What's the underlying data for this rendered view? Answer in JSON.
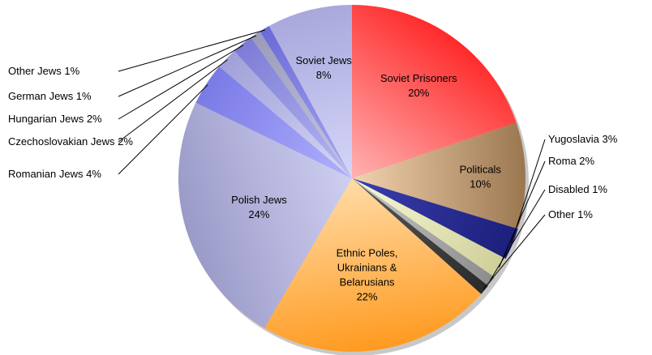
{
  "chart_data": {
    "type": "pie",
    "title": "",
    "start_angle_deg": 90,
    "direction": "clockwise",
    "slices": [
      {
        "name": "Soviet Prisoners",
        "value": 20,
        "inside_label": [
          "Soviet Prisoners",
          "20%"
        ],
        "outside_label": "",
        "label_side": "",
        "color": "#ff2a2a",
        "color_light": "#ffb3b3"
      },
      {
        "name": "Politicals",
        "value": 10,
        "inside_label": [
          "Politicals",
          "10%"
        ],
        "outside_label": "",
        "label_side": "",
        "color": "#9b7750",
        "color_light": "#f3d3b0"
      },
      {
        "name": "Yugoslavia",
        "value": 3,
        "inside_label": [],
        "outside_label": "Yugoslavia 3%",
        "label_side": "right",
        "color": "#1c1f7a",
        "color_light": "#3a3fb0"
      },
      {
        "name": "Roma",
        "value": 2,
        "inside_label": [],
        "outside_label": "Roma 2%",
        "label_side": "right",
        "color": "#cfcf9a",
        "color_light": "#fafad6"
      },
      {
        "name": "Disabled",
        "value": 1,
        "inside_label": [],
        "outside_label": "Disabled 1%",
        "label_side": "right",
        "color": "#8c8c8c",
        "color_light": "#c8c8c8"
      },
      {
        "name": "Other",
        "value": 1,
        "inside_label": [],
        "outside_label": "Other 1%",
        "label_side": "right",
        "color": "#2a2a2a",
        "color_light": "#5a5a5a"
      },
      {
        "name": "Ethnic Poles, Ukrainians & Belarusians",
        "value": 22,
        "inside_label": [
          "Ethnic Poles,",
          "Ukrainians &",
          "Belarusians",
          "22%"
        ],
        "outside_label": "",
        "label_side": "",
        "color": "#ff9a1f",
        "color_light": "#ffdca8"
      },
      {
        "name": "Polish Jews",
        "value": 24,
        "inside_label": [
          "Polish Jews",
          "24%"
        ],
        "outside_label": "",
        "label_side": "",
        "color": "#9a9ac8",
        "color_light": "#cfcff2"
      },
      {
        "name": "Romanian Jews",
        "value": 4,
        "inside_label": [],
        "outside_label": "Romanian Jews 4%",
        "label_side": "left",
        "color": "#7a7ae6",
        "color_light": "#b0b0ff"
      },
      {
        "name": "Czechoslovakian Jews",
        "value": 2,
        "inside_label": [],
        "outside_label": "Czechoslovakian Jews 2%",
        "label_side": "left",
        "color": "#a0a0d8",
        "color_light": "#d8d8f8"
      },
      {
        "name": "Hungarian Jews",
        "value": 2,
        "inside_label": [],
        "outside_label": "Hungarian Jews 2%",
        "label_side": "left",
        "color": "#7c7cd6",
        "color_light": "#b8b8f4"
      },
      {
        "name": "German Jews",
        "value": 1,
        "inside_label": [],
        "outside_label": "German Jews 1%",
        "label_side": "left",
        "color": "#9a9aba",
        "color_light": "#c8c8e4"
      },
      {
        "name": "Other Jews",
        "value": 1,
        "inside_label": [],
        "outside_label": "Other Jews 1%",
        "label_side": "left",
        "color": "#6a6ad8",
        "color_light": "#a8a8f4"
      },
      {
        "name": "Soviet Jews",
        "value": 8,
        "inside_label": [
          "Soviet Jews",
          "8%"
        ],
        "outside_label": "",
        "label_side": "",
        "color": "#a8a8dc",
        "color_light": "#d6d6fa"
      }
    ]
  }
}
